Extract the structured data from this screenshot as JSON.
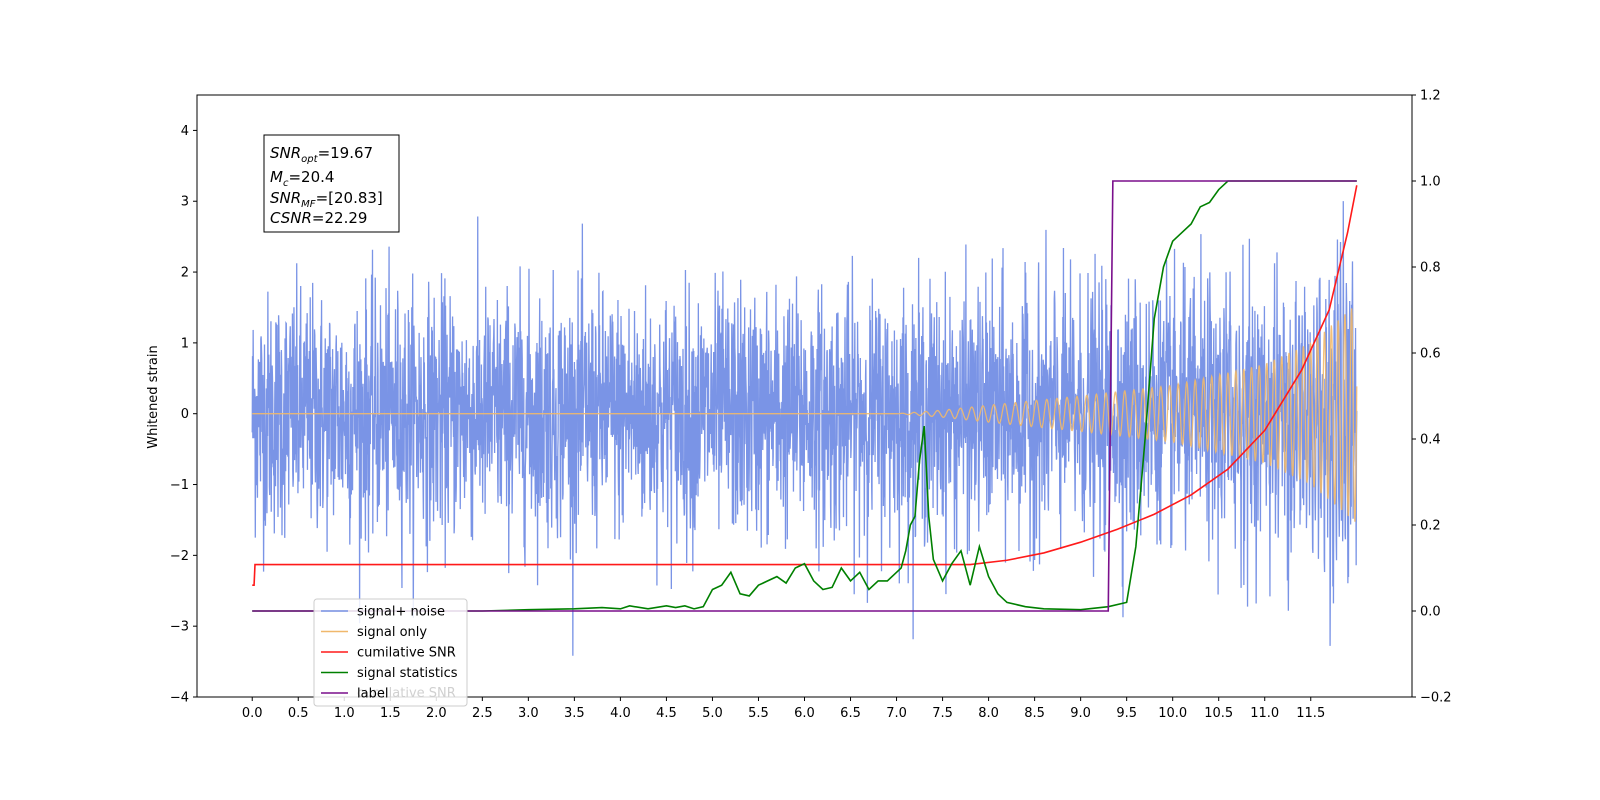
{
  "chart_data": {
    "type": "line",
    "ylabel_left": "Whitened strain",
    "xlim": [
      -0.6,
      12.6
    ],
    "ylim_left": [
      -4.0,
      4.5
    ],
    "ylim_right": [
      -0.2,
      1.2
    ],
    "x_ticks": [
      "0.0",
      "0.5",
      "1.0",
      "1.5",
      "2.0",
      "2.5",
      "3.0",
      "3.5",
      "4.0",
      "4.5",
      "5.0",
      "5.5",
      "6.0",
      "6.5",
      "7.0",
      "7.5",
      "8.0",
      "8.5",
      "9.0",
      "9.5",
      "10.0",
      "10.5",
      "11.0",
      "11.5"
    ],
    "y_ticks_left": [
      "−4",
      "−3",
      "−2",
      "−1",
      "0",
      "1",
      "2",
      "3",
      "4"
    ],
    "y_ticks_right": [
      "−0.2",
      "0.0",
      "0.2",
      "0.4",
      "0.6",
      "0.8",
      "1.0",
      "1.2"
    ],
    "grid": false,
    "legend_position": "lower-left",
    "info_box": {
      "line1": {
        "main": "SNR",
        "sub": "opt",
        "rest": "=19.67"
      },
      "line2": {
        "main": "M",
        "sub": "c",
        "rest": "=20.4"
      },
      "line3": {
        "main": "SNR",
        "sub": "MF",
        "rest": "=[20.83]"
      },
      "line4": {
        "main": "CSNR",
        "sub": "",
        "rest": "=22.29"
      }
    },
    "series": [
      {
        "name": "signal+ noise",
        "color": "#7a94e6",
        "axis": "left",
        "x_range": [
          0,
          12.0
        ],
        "noise_sigma": 0.85
      },
      {
        "name": "signal only",
        "color": "#f0b86c",
        "axis": "left",
        "x_range": [
          0,
          12.0
        ],
        "amplitude_points": [
          [
            0,
            0.0
          ],
          [
            7.0,
            0.0
          ],
          [
            7.5,
            0.05
          ],
          [
            8.0,
            0.12
          ],
          [
            9.0,
            0.25
          ],
          [
            10.0,
            0.4
          ],
          [
            11.0,
            0.7
          ],
          [
            11.5,
            1.0
          ],
          [
            12.0,
            1.55
          ]
        ]
      },
      {
        "name": "cumilative SNR",
        "color": "#ff1a1a",
        "axis": "right",
        "x": [
          0,
          0.02,
          0.03,
          7.8,
          8.2,
          8.6,
          9.0,
          9.4,
          9.8,
          10.2,
          10.6,
          11.0,
          11.4,
          11.7,
          11.9,
          12.0
        ],
        "y": [
          0.06,
          0.06,
          0.108,
          0.108,
          0.118,
          0.135,
          0.16,
          0.19,
          0.225,
          0.27,
          0.33,
          0.42,
          0.56,
          0.7,
          0.88,
          0.99
        ]
      },
      {
        "name": "signal statistics",
        "color": "#008000",
        "axis": "right",
        "x": [
          0,
          1.0,
          2.0,
          2.5,
          3.0,
          3.5,
          3.8,
          4.0,
          4.1,
          4.3,
          4.5,
          4.6,
          4.7,
          4.8,
          4.9,
          5.0,
          5.1,
          5.2,
          5.3,
          5.4,
          5.5,
          5.6,
          5.7,
          5.8,
          5.9,
          6.0,
          6.1,
          6.2,
          6.3,
          6.4,
          6.5,
          6.6,
          6.7,
          6.8,
          6.9,
          7.0,
          7.05,
          7.1,
          7.15,
          7.2,
          7.25,
          7.3,
          7.35,
          7.4,
          7.5,
          7.6,
          7.7,
          7.8,
          7.9,
          8.0,
          8.1,
          8.2,
          8.4,
          8.6,
          9.0,
          9.3,
          9.5,
          9.6,
          9.7,
          9.8,
          9.9,
          10.0,
          10.1,
          10.2,
          10.3,
          10.4,
          10.5,
          10.6,
          10.7,
          11.0,
          12.0
        ],
        "y": [
          0.0,
          0.0,
          0.0,
          0.0,
          0.003,
          0.005,
          0.008,
          0.005,
          0.012,
          0.005,
          0.012,
          0.008,
          0.012,
          0.005,
          0.01,
          0.05,
          0.06,
          0.09,
          0.04,
          0.035,
          0.06,
          0.07,
          0.08,
          0.065,
          0.1,
          0.11,
          0.07,
          0.05,
          0.055,
          0.1,
          0.07,
          0.09,
          0.05,
          0.07,
          0.07,
          0.09,
          0.1,
          0.14,
          0.2,
          0.22,
          0.35,
          0.43,
          0.22,
          0.12,
          0.07,
          0.11,
          0.14,
          0.06,
          0.15,
          0.08,
          0.04,
          0.02,
          0.01,
          0.005,
          0.003,
          0.01,
          0.02,
          0.15,
          0.4,
          0.68,
          0.8,
          0.86,
          0.88,
          0.9,
          0.94,
          0.95,
          0.98,
          1.0,
          1.0,
          1.0,
          1.0
        ]
      },
      {
        "name": "label",
        "color": "#7a0f8c",
        "axis": "right",
        "x": [
          0,
          9.3,
          9.35,
          12.0
        ],
        "y": [
          0.0,
          0.0,
          1.0,
          1.0
        ]
      }
    ],
    "legend_entries": [
      "signal+ noise",
      "signal only",
      "cumilative SNR",
      "signal statistics",
      "label"
    ],
    "legend_ghost_text": "cumilative SNR"
  }
}
